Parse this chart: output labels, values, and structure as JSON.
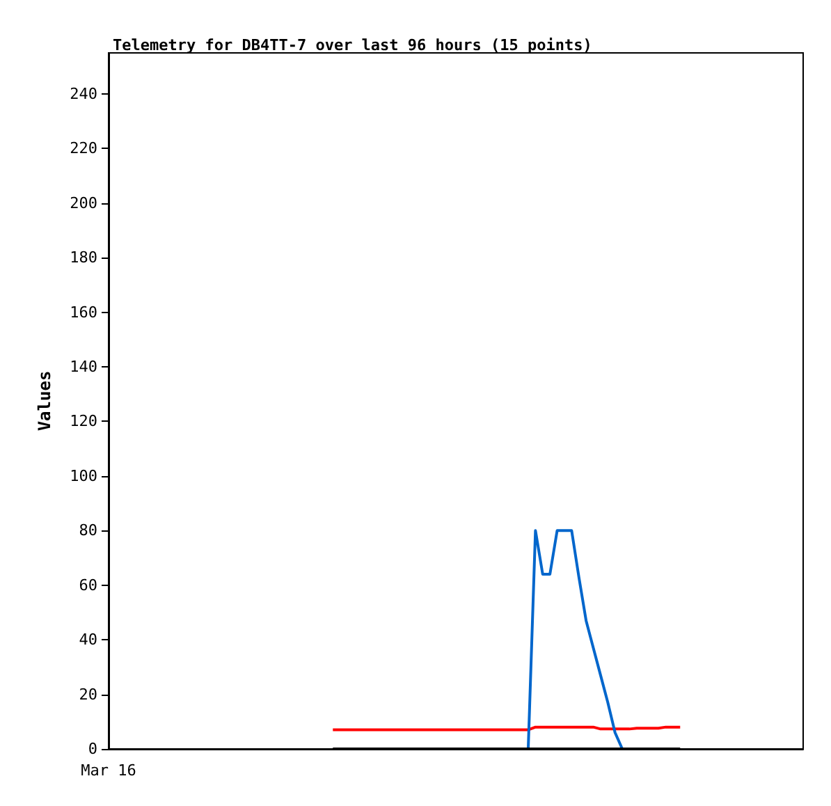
{
  "chart_data": {
    "type": "line",
    "title": "Telemetry for DB4TT-7 over last 96 hours (15 points)",
    "ylabel": "Values",
    "categories": [
      "Mar 16",
      null,
      null,
      null,
      null,
      null,
      null,
      null,
      null,
      null,
      null,
      null,
      null,
      null,
      null,
      null,
      null,
      null,
      null,
      null,
      null,
      null,
      null,
      null,
      null,
      null,
      null,
      null,
      null,
      null,
      null,
      null,
      null,
      null,
      null,
      null,
      null,
      null,
      null,
      null,
      null,
      null,
      null,
      null,
      null,
      null,
      null,
      null,
      null,
      null,
      null,
      null,
      null,
      null,
      null,
      null,
      null,
      null,
      null,
      null,
      null,
      null,
      null,
      null,
      null,
      null,
      null,
      null,
      null,
      null,
      null,
      null,
      null,
      null,
      null,
      null,
      null,
      null,
      null,
      null,
      null,
      null,
      null,
      null,
      null,
      null,
      null,
      null,
      null,
      null,
      null,
      null,
      null,
      null,
      null,
      null,
      null
    ],
    "ylim": [
      0,
      255
    ],
    "yticks": [
      0,
      20,
      40,
      60,
      80,
      100,
      120,
      140,
      160,
      180,
      200,
      220,
      240
    ],
    "grid": false,
    "marker": "none",
    "line_style": "solid",
    "series": [
      {
        "color": "#ff0000",
        "values": [
          null,
          null,
          null,
          null,
          null,
          null,
          null,
          null,
          null,
          null,
          null,
          null,
          null,
          null,
          null,
          null,
          null,
          null,
          null,
          null,
          null,
          null,
          null,
          null,
          null,
          null,
          null,
          null,
          null,
          null,
          null,
          7,
          7,
          7,
          7,
          7,
          7,
          7,
          7,
          7,
          7,
          7,
          7,
          7,
          7,
          7,
          7,
          7,
          7,
          7,
          7,
          7,
          7,
          7,
          7,
          7,
          7,
          7,
          7,
          8,
          8,
          8,
          8,
          8,
          8,
          8,
          8,
          8,
          7.3,
          7.3,
          7.3,
          7.3,
          7.3,
          7.6,
          7.6,
          7.6,
          7.6,
          8,
          8,
          8,
          null,
          null,
          null,
          null,
          null,
          null,
          null,
          null,
          null,
          null,
          null,
          null,
          null,
          null,
          null,
          null,
          null
        ]
      },
      {
        "color": "#0066cc",
        "values": [
          null,
          null,
          null,
          null,
          null,
          null,
          null,
          null,
          null,
          null,
          null,
          null,
          null,
          null,
          null,
          null,
          null,
          null,
          null,
          null,
          null,
          null,
          null,
          null,
          null,
          null,
          null,
          null,
          null,
          null,
          null,
          null,
          null,
          null,
          null,
          null,
          null,
          null,
          null,
          null,
          null,
          null,
          null,
          null,
          null,
          null,
          null,
          null,
          null,
          null,
          null,
          null,
          null,
          null,
          null,
          null,
          null,
          null,
          0,
          80,
          64,
          64,
          80,
          80,
          80,
          63,
          47,
          37,
          27,
          17,
          6,
          0,
          null,
          null,
          null,
          null,
          null,
          null,
          null,
          null,
          null,
          null,
          null,
          null,
          null,
          null,
          null,
          null,
          null,
          null,
          null,
          null,
          null,
          null,
          null,
          null,
          null
        ]
      },
      {
        "color": "#000000",
        "values": [
          null,
          null,
          null,
          null,
          null,
          null,
          null,
          null,
          null,
          null,
          null,
          null,
          null,
          null,
          null,
          null,
          null,
          null,
          null,
          null,
          null,
          null,
          null,
          null,
          null,
          null,
          null,
          null,
          null,
          null,
          null,
          0,
          0,
          0,
          0,
          0,
          0,
          0,
          0,
          0,
          0,
          0,
          0,
          0,
          0,
          0,
          0,
          0,
          0,
          0,
          0,
          0,
          0,
          0,
          0,
          0,
          0,
          0,
          0,
          0,
          0,
          0,
          0,
          0,
          0,
          0,
          0,
          0,
          0,
          0,
          0,
          0,
          0,
          0,
          0,
          0,
          0,
          0,
          0,
          0,
          null,
          null,
          null,
          null,
          null,
          null,
          null,
          null,
          null,
          null,
          null,
          null,
          null,
          null,
          null,
          null,
          null
        ]
      }
    ]
  }
}
